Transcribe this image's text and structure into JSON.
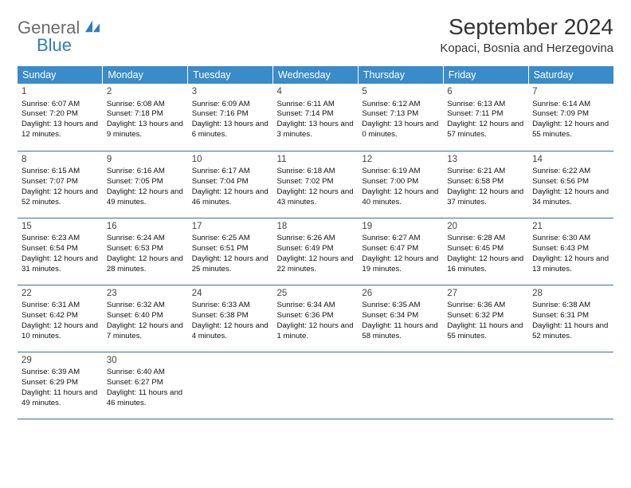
{
  "brand": {
    "word1": "General",
    "word2": "Blue"
  },
  "title": "September 2024",
  "location": "Kopaci, Bosnia and Herzegovina",
  "colors": {
    "header_bg": "#3a8bc9",
    "header_text": "#ffffff",
    "cell_border": "#3a6ea5",
    "body_text": "#111111",
    "brand_gray": "#6b6b6b",
    "brand_blue": "#2f7ebc"
  },
  "weekdays": [
    "Sunday",
    "Monday",
    "Tuesday",
    "Wednesday",
    "Thursday",
    "Friday",
    "Saturday"
  ],
  "days": [
    {
      "n": 1,
      "sunrise": "6:07 AM",
      "sunset": "7:20 PM",
      "daylight": "13 hours and 12 minutes."
    },
    {
      "n": 2,
      "sunrise": "6:08 AM",
      "sunset": "7:18 PM",
      "daylight": "13 hours and 9 minutes."
    },
    {
      "n": 3,
      "sunrise": "6:09 AM",
      "sunset": "7:16 PM",
      "daylight": "13 hours and 6 minutes."
    },
    {
      "n": 4,
      "sunrise": "6:11 AM",
      "sunset": "7:14 PM",
      "daylight": "13 hours and 3 minutes."
    },
    {
      "n": 5,
      "sunrise": "6:12 AM",
      "sunset": "7:13 PM",
      "daylight": "13 hours and 0 minutes."
    },
    {
      "n": 6,
      "sunrise": "6:13 AM",
      "sunset": "7:11 PM",
      "daylight": "12 hours and 57 minutes."
    },
    {
      "n": 7,
      "sunrise": "6:14 AM",
      "sunset": "7:09 PM",
      "daylight": "12 hours and 55 minutes."
    },
    {
      "n": 8,
      "sunrise": "6:15 AM",
      "sunset": "7:07 PM",
      "daylight": "12 hours and 52 minutes."
    },
    {
      "n": 9,
      "sunrise": "6:16 AM",
      "sunset": "7:05 PM",
      "daylight": "12 hours and 49 minutes."
    },
    {
      "n": 10,
      "sunrise": "6:17 AM",
      "sunset": "7:04 PM",
      "daylight": "12 hours and 46 minutes."
    },
    {
      "n": 11,
      "sunrise": "6:18 AM",
      "sunset": "7:02 PM",
      "daylight": "12 hours and 43 minutes."
    },
    {
      "n": 12,
      "sunrise": "6:19 AM",
      "sunset": "7:00 PM",
      "daylight": "12 hours and 40 minutes."
    },
    {
      "n": 13,
      "sunrise": "6:21 AM",
      "sunset": "6:58 PM",
      "daylight": "12 hours and 37 minutes."
    },
    {
      "n": 14,
      "sunrise": "6:22 AM",
      "sunset": "6:56 PM",
      "daylight": "12 hours and 34 minutes."
    },
    {
      "n": 15,
      "sunrise": "6:23 AM",
      "sunset": "6:54 PM",
      "daylight": "12 hours and 31 minutes."
    },
    {
      "n": 16,
      "sunrise": "6:24 AM",
      "sunset": "6:53 PM",
      "daylight": "12 hours and 28 minutes."
    },
    {
      "n": 17,
      "sunrise": "6:25 AM",
      "sunset": "6:51 PM",
      "daylight": "12 hours and 25 minutes."
    },
    {
      "n": 18,
      "sunrise": "6:26 AM",
      "sunset": "6:49 PM",
      "daylight": "12 hours and 22 minutes."
    },
    {
      "n": 19,
      "sunrise": "6:27 AM",
      "sunset": "6:47 PM",
      "daylight": "12 hours and 19 minutes."
    },
    {
      "n": 20,
      "sunrise": "6:28 AM",
      "sunset": "6:45 PM",
      "daylight": "12 hours and 16 minutes."
    },
    {
      "n": 21,
      "sunrise": "6:30 AM",
      "sunset": "6:43 PM",
      "daylight": "12 hours and 13 minutes."
    },
    {
      "n": 22,
      "sunrise": "6:31 AM",
      "sunset": "6:42 PM",
      "daylight": "12 hours and 10 minutes."
    },
    {
      "n": 23,
      "sunrise": "6:32 AM",
      "sunset": "6:40 PM",
      "daylight": "12 hours and 7 minutes."
    },
    {
      "n": 24,
      "sunrise": "6:33 AM",
      "sunset": "6:38 PM",
      "daylight": "12 hours and 4 minutes."
    },
    {
      "n": 25,
      "sunrise": "6:34 AM",
      "sunset": "6:36 PM",
      "daylight": "12 hours and 1 minute."
    },
    {
      "n": 26,
      "sunrise": "6:35 AM",
      "sunset": "6:34 PM",
      "daylight": "11 hours and 58 minutes."
    },
    {
      "n": 27,
      "sunrise": "6:36 AM",
      "sunset": "6:32 PM",
      "daylight": "11 hours and 55 minutes."
    },
    {
      "n": 28,
      "sunrise": "6:38 AM",
      "sunset": "6:31 PM",
      "daylight": "11 hours and 52 minutes."
    },
    {
      "n": 29,
      "sunrise": "6:39 AM",
      "sunset": "6:29 PM",
      "daylight": "11 hours and 49 minutes."
    },
    {
      "n": 30,
      "sunrise": "6:40 AM",
      "sunset": "6:27 PM",
      "daylight": "11 hours and 46 minutes."
    }
  ],
  "labels": {
    "sunrise": "Sunrise:",
    "sunset": "Sunset:",
    "daylight": "Daylight:"
  },
  "layout": {
    "first_day_offset": 0,
    "columns": 7
  }
}
